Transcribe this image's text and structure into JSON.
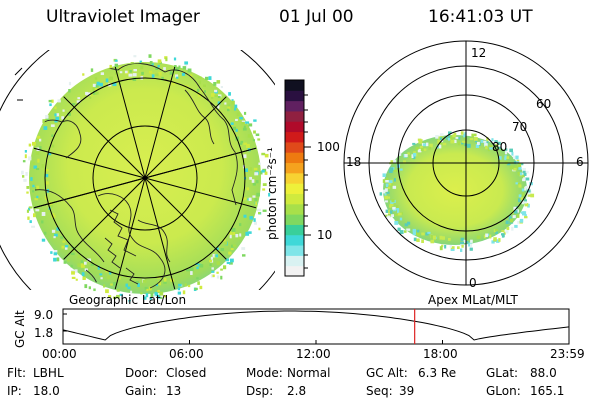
{
  "header": {
    "instrument": "Ultraviolet Imager",
    "date": "01 Jul 00",
    "time": "16:41:03 UT"
  },
  "colorbar": {
    "unit_label": "photon cm⁻²s⁻¹",
    "tick_100": "100",
    "tick_10": "10",
    "colors": [
      "#f2f2f2",
      "#d9f2f2",
      "#7fe5e8",
      "#3fd8d8",
      "#39cf9a",
      "#7fd860",
      "#a8e04a",
      "#d0ea3e",
      "#eef03a",
      "#f7d232",
      "#f5a21e",
      "#ee7a10",
      "#e04a1a",
      "#d01a1a",
      "#b00a2a",
      "#902040",
      "#602060",
      "#2a1040",
      "#101020"
    ]
  },
  "left_map": {
    "label": "Geographic Lat/Lon",
    "glow_color": "#d4ec52"
  },
  "right_map": {
    "label": "Apex MLat/MLT",
    "mlt_12": "12",
    "mlt_18": "18",
    "mlt_6": "6",
    "mlt_0": "0",
    "lat_60": "60",
    "lat_70": "70",
    "lat_80": "80"
  },
  "altitude_plot": {
    "y_axis_label": "GC Alt",
    "y_tick_top": "9.0",
    "y_tick_bottom": "1.8",
    "x_ticks": [
      "00:00",
      "06:00",
      "12:00",
      "18:00",
      "23:59"
    ],
    "current_time_marker_hours": 16.68,
    "marker_color": "#dd2222"
  },
  "info": {
    "filter_label": "Flt:",
    "filter_value": "LBHL",
    "door_label": "Door:",
    "door_value": "Closed",
    "mode_label": "Mode:",
    "mode_value": "Normal",
    "gcalt_label": "GC Alt:",
    "gcalt_value": "6.3 Re",
    "glat_label": "GLat:",
    "glat_value": "88.0",
    "ip_label": "IP:",
    "ip_value": "18.0",
    "gain_label": "Gain:",
    "gain_value": "13",
    "dsp_label": "Dsp:",
    "dsp_value": "2.8",
    "seq_label": "Seq:",
    "seq_value": "39",
    "glon_label": "GLon:",
    "glon_value": "165.1"
  }
}
